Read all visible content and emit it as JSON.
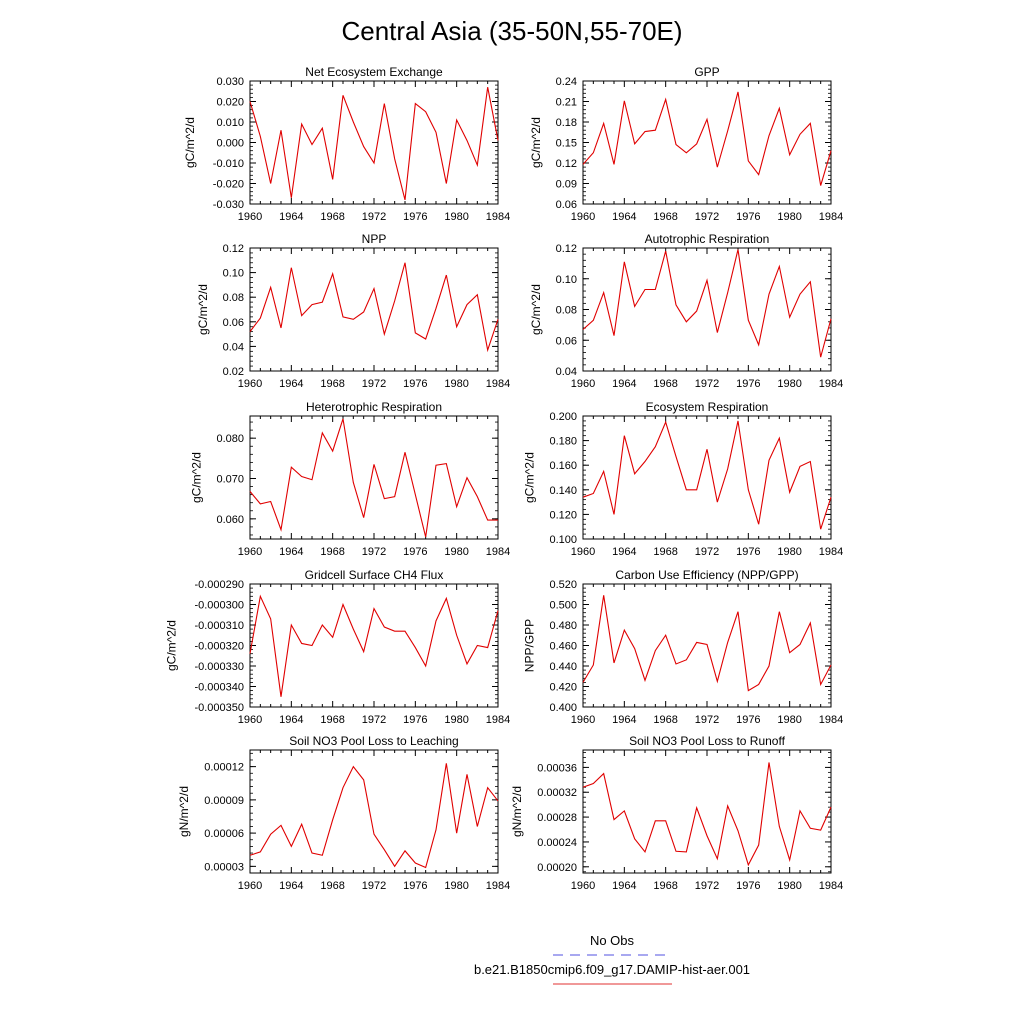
{
  "figure": {
    "title": "Central Asia (35-50N,55-70E)",
    "legend": [
      {
        "label": "No Obs",
        "color": "#5050e0",
        "dash": true
      },
      {
        "label": "b.e21.B1850cmip6.f09_g17.DAMIP-hist-aer.001",
        "color": "#e03030",
        "dash": false
      }
    ],
    "series_color": "#e00000"
  },
  "chart_data": [
    {
      "type": "line",
      "title": "Net Ecosystem Exchange",
      "ylabel": "gC/m^2/d",
      "x": [
        1960,
        1961,
        1962,
        1963,
        1964,
        1965,
        1966,
        1967,
        1968,
        1969,
        1970,
        1971,
        1972,
        1973,
        1974,
        1975,
        1976,
        1977,
        1978,
        1979,
        1980,
        1981,
        1982,
        1983,
        1984
      ],
      "y": [
        0.02,
        0.003,
        -0.02,
        0.006,
        -0.027,
        0.009,
        -0.001,
        0.007,
        -0.018,
        0.023,
        0.01,
        -0.002,
        -0.01,
        0.019,
        -0.008,
        -0.028,
        0.019,
        0.015,
        0.005,
        -0.02,
        0.011,
        0.001,
        -0.011,
        0.027,
        0.001
      ],
      "xlim": [
        1960,
        1984
      ],
      "ylim": [
        -0.03,
        0.03
      ],
      "xticks": [
        "1960",
        "1964",
        "1968",
        "1972",
        "1976",
        "1980",
        "1984"
      ],
      "yticks": [
        "-0.030",
        "-0.020",
        "-0.010",
        "0.000",
        "0.010",
        "0.020",
        "0.030"
      ]
    },
    {
      "type": "line",
      "title": "GPP",
      "ylabel": "gC/m^2/d",
      "x": [
        1960,
        1961,
        1962,
        1963,
        1964,
        1965,
        1966,
        1967,
        1968,
        1969,
        1970,
        1971,
        1972,
        1973,
        1974,
        1975,
        1976,
        1977,
        1978,
        1979,
        1980,
        1981,
        1982,
        1983,
        1984
      ],
      "y": [
        0.118,
        0.135,
        0.178,
        0.118,
        0.211,
        0.148,
        0.166,
        0.168,
        0.213,
        0.147,
        0.135,
        0.148,
        0.184,
        0.114,
        0.167,
        0.224,
        0.123,
        0.103,
        0.16,
        0.2,
        0.132,
        0.162,
        0.178,
        0.087,
        0.138
      ],
      "xlim": [
        1960,
        1984
      ],
      "ylim": [
        0.06,
        0.24
      ],
      "xticks": [
        "1960",
        "1964",
        "1968",
        "1972",
        "1976",
        "1980",
        "1984"
      ],
      "yticks": [
        "0.06",
        "0.09",
        "0.12",
        "0.15",
        "0.18",
        "0.21",
        "0.24"
      ]
    },
    {
      "type": "line",
      "title": "NPP",
      "ylabel": "gC/m^2/d",
      "x": [
        1960,
        1961,
        1962,
        1963,
        1964,
        1965,
        1966,
        1967,
        1968,
        1969,
        1970,
        1971,
        1972,
        1973,
        1974,
        1975,
        1976,
        1977,
        1978,
        1979,
        1980,
        1981,
        1982,
        1983,
        1984
      ],
      "y": [
        0.052,
        0.063,
        0.088,
        0.055,
        0.104,
        0.065,
        0.074,
        0.076,
        0.099,
        0.064,
        0.062,
        0.068,
        0.087,
        0.05,
        0.077,
        0.108,
        0.051,
        0.046,
        0.071,
        0.098,
        0.056,
        0.074,
        0.082,
        0.037,
        0.062
      ],
      "xlim": [
        1960,
        1984
      ],
      "ylim": [
        0.02,
        0.12
      ],
      "xticks": [
        "1960",
        "1964",
        "1968",
        "1972",
        "1976",
        "1980",
        "1984"
      ],
      "yticks": [
        "0.02",
        "0.04",
        "0.06",
        "0.08",
        "0.10",
        "0.12"
      ]
    },
    {
      "type": "line",
      "title": "Autotrophic Respiration",
      "ylabel": "gC/m^2/d",
      "x": [
        1960,
        1961,
        1962,
        1963,
        1964,
        1965,
        1966,
        1967,
        1968,
        1969,
        1970,
        1971,
        1972,
        1973,
        1974,
        1975,
        1976,
        1977,
        1978,
        1979,
        1980,
        1981,
        1982,
        1983,
        1984
      ],
      "y": [
        0.067,
        0.073,
        0.091,
        0.063,
        0.111,
        0.082,
        0.093,
        0.093,
        0.118,
        0.083,
        0.072,
        0.079,
        0.099,
        0.065,
        0.091,
        0.119,
        0.073,
        0.057,
        0.09,
        0.108,
        0.075,
        0.09,
        0.098,
        0.049,
        0.074
      ],
      "xlim": [
        1960,
        1984
      ],
      "ylim": [
        0.04,
        0.12
      ],
      "xticks": [
        "1960",
        "1964",
        "1968",
        "1972",
        "1976",
        "1980",
        "1984"
      ],
      "yticks": [
        "0.04",
        "0.06",
        "0.08",
        "0.10",
        "0.12"
      ]
    },
    {
      "type": "line",
      "title": "Heterotrophic Respiration",
      "ylabel": "gC/m^2/d",
      "x": [
        1960,
        1961,
        1962,
        1963,
        1964,
        1965,
        1966,
        1967,
        1968,
        1969,
        1970,
        1971,
        1972,
        1973,
        1974,
        1975,
        1976,
        1977,
        1978,
        1979,
        1980,
        1981,
        1982,
        1983,
        1984
      ],
      "y": [
        0.0668,
        0.0637,
        0.0643,
        0.0573,
        0.0728,
        0.0705,
        0.0697,
        0.0813,
        0.0768,
        0.0848,
        0.069,
        0.0603,
        0.0735,
        0.065,
        0.0655,
        0.0765,
        0.066,
        0.0555,
        0.0733,
        0.0737,
        0.063,
        0.0702,
        0.0655,
        0.0597,
        0.0597
      ],
      "xlim": [
        1960,
        1984
      ],
      "ylim": [
        0.055,
        0.0855
      ],
      "xticks": [
        "1960",
        "1964",
        "1968",
        "1972",
        "1976",
        "1980",
        "1984"
      ],
      "yticks": [
        "0.060",
        "0.070",
        "0.080"
      ]
    },
    {
      "type": "line",
      "title": "Ecosystem Respiration",
      "ylabel": "gC/m^2/d",
      "x": [
        1960,
        1961,
        1962,
        1963,
        1964,
        1965,
        1966,
        1967,
        1968,
        1969,
        1970,
        1971,
        1972,
        1973,
        1974,
        1975,
        1976,
        1977,
        1978,
        1979,
        1980,
        1981,
        1982,
        1983,
        1984
      ],
      "y": [
        0.134,
        0.137,
        0.155,
        0.12,
        0.184,
        0.153,
        0.163,
        0.175,
        0.195,
        0.167,
        0.14,
        0.14,
        0.173,
        0.13,
        0.157,
        0.196,
        0.14,
        0.112,
        0.164,
        0.182,
        0.138,
        0.159,
        0.163,
        0.108,
        0.134
      ],
      "xlim": [
        1960,
        1984
      ],
      "ylim": [
        0.1,
        0.2
      ],
      "xticks": [
        "1960",
        "1964",
        "1968",
        "1972",
        "1976",
        "1980",
        "1984"
      ],
      "yticks": [
        "0.100",
        "0.120",
        "0.140",
        "0.160",
        "0.180",
        "0.200"
      ]
    },
    {
      "type": "line",
      "title": "Gridcell Surface CH4 Flux",
      "ylabel": "gC/m^2/d",
      "x": [
        1960,
        1961,
        1962,
        1963,
        1964,
        1965,
        1966,
        1967,
        1968,
        1969,
        1970,
        1971,
        1972,
        1973,
        1974,
        1975,
        1976,
        1977,
        1978,
        1979,
        1980,
        1981,
        1982,
        1983,
        1984
      ],
      "y": [
        -0.000324,
        -0.000296,
        -0.000307,
        -0.000345,
        -0.00031,
        -0.000319,
        -0.00032,
        -0.00031,
        -0.000316,
        -0.0003,
        -0.000312,
        -0.000323,
        -0.000302,
        -0.000311,
        -0.000313,
        -0.000313,
        -0.000321,
        -0.00033,
        -0.000308,
        -0.000297,
        -0.000315,
        -0.000329,
        -0.00032,
        -0.000321,
        -0.000303
      ],
      "xlim": [
        1960,
        1984
      ],
      "ylim": [
        -0.00035,
        -0.00029
      ],
      "xticks": [
        "1960",
        "1964",
        "1968",
        "1972",
        "1976",
        "1980",
        "1984"
      ],
      "yticks": [
        "-0.000350",
        "-0.000340",
        "-0.000330",
        "-0.000320",
        "-0.000310",
        "-0.000300",
        "-0.000290"
      ]
    },
    {
      "type": "line",
      "title": "Carbon Use Efficiency (NPP/GPP)",
      "ylabel": "NPP/GPP",
      "x": [
        1960,
        1961,
        1962,
        1963,
        1964,
        1965,
        1966,
        1967,
        1968,
        1969,
        1970,
        1971,
        1972,
        1973,
        1974,
        1975,
        1976,
        1977,
        1978,
        1979,
        1980,
        1981,
        1982,
        1983,
        1984
      ],
      "y": [
        0.424,
        0.441,
        0.509,
        0.443,
        0.475,
        0.457,
        0.426,
        0.455,
        0.47,
        0.442,
        0.446,
        0.463,
        0.461,
        0.425,
        0.463,
        0.493,
        0.416,
        0.422,
        0.44,
        0.493,
        0.453,
        0.461,
        0.482,
        0.422,
        0.441
      ],
      "xlim": [
        1960,
        1984
      ],
      "ylim": [
        0.4,
        0.52
      ],
      "xticks": [
        "1960",
        "1964",
        "1968",
        "1972",
        "1976",
        "1980",
        "1984"
      ],
      "yticks": [
        "0.400",
        "0.420",
        "0.440",
        "0.460",
        "0.480",
        "0.500",
        "0.520"
      ]
    },
    {
      "type": "line",
      "title": "Soil NO3 Pool Loss to Leaching",
      "ylabel": "gN/m^2/d",
      "x": [
        1960,
        1961,
        1962,
        1963,
        1964,
        1965,
        1966,
        1967,
        1968,
        1969,
        1970,
        1971,
        1972,
        1973,
        1974,
        1975,
        1976,
        1977,
        1978,
        1979,
        1980,
        1981,
        1982,
        1983,
        1984
      ],
      "y": [
        4e-05,
        4.3e-05,
        5.9e-05,
        6.7e-05,
        4.8e-05,
        6.8e-05,
        4.2e-05,
        4e-05,
        7.2e-05,
        0.000101,
        0.00012,
        0.000108,
        5.9e-05,
        4.5e-05,
        3e-05,
        4.4e-05,
        3.3e-05,
        2.9e-05,
        6.3e-05,
        0.000123,
        6e-05,
        0.000113,
        6.6e-05,
        0.000101,
        8.9e-05
      ],
      "xlim": [
        1960,
        1984
      ],
      "ylim": [
        2.4e-05,
        0.000135
      ],
      "xticks": [
        "1960",
        "1964",
        "1968",
        "1972",
        "1976",
        "1980",
        "1984"
      ],
      "yticks": [
        "0.00003",
        "0.00006",
        "0.00009",
        "0.00012"
      ]
    },
    {
      "type": "line",
      "title": "Soil NO3 Pool Loss to Runoff",
      "ylabel": "gN/m^2/d",
      "x": [
        1960,
        1961,
        1962,
        1963,
        1964,
        1965,
        1966,
        1967,
        1968,
        1969,
        1970,
        1971,
        1972,
        1973,
        1974,
        1975,
        1976,
        1977,
        1978,
        1979,
        1980,
        1981,
        1982,
        1983,
        1984
      ],
      "y": [
        0.000328,
        0.000334,
        0.00035,
        0.000276,
        0.00029,
        0.000245,
        0.000224,
        0.000274,
        0.000274,
        0.000225,
        0.000224,
        0.000295,
        0.00025,
        0.000213,
        0.000298,
        0.000258,
        0.000203,
        0.000235,
        0.000368,
        0.000265,
        0.000211,
        0.00029,
        0.000262,
        0.000259,
        0.000296
      ],
      "xlim": [
        1960,
        1984
      ],
      "ylim": [
        0.00019,
        0.000388
      ],
      "xticks": [
        "1960",
        "1964",
        "1968",
        "1972",
        "1976",
        "1980",
        "1984"
      ],
      "yticks": [
        "0.00020",
        "0.00024",
        "0.00028",
        "0.00032",
        "0.00036"
      ]
    }
  ]
}
